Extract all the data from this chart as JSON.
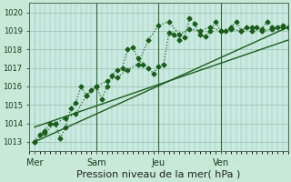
{
  "xlabel": "Pression niveau de la mer( hPa )",
  "bg_color": "#c8e8d8",
  "plot_bg_color": "#c8eae0",
  "grid_color": "#99bbaa",
  "line_color": "#1a5c1a",
  "vline_color": "#336633",
  "ylim": [
    1012.5,
    1020.5
  ],
  "xlim": [
    0,
    100
  ],
  "yticks": [
    1013,
    1014,
    1015,
    1016,
    1017,
    1018,
    1019,
    1020
  ],
  "ytick_labels": [
    "1013",
    "1014",
    "1015",
    "1016",
    "1017",
    "1018",
    "1019",
    "1020"
  ],
  "xtick_positions": [
    2,
    26,
    50,
    74
  ],
  "xtick_labels": [
    "Mer",
    "Sam",
    "Jeu",
    "Ven"
  ],
  "vline_positions": [
    26,
    50,
    74
  ],
  "series1_x": [
    2,
    4,
    6,
    8,
    10,
    12,
    14,
    16,
    18,
    20,
    22,
    24,
    26,
    28,
    30,
    32,
    34,
    36,
    38,
    40,
    42,
    44,
    46,
    48,
    50,
    52,
    54,
    56,
    58,
    60,
    62,
    64,
    66,
    68,
    70,
    72,
    74,
    76,
    78,
    80,
    82,
    84,
    86,
    88,
    90,
    92,
    94,
    96,
    98,
    100
  ],
  "series1_y": [
    1013.0,
    1013.4,
    1013.6,
    1014.0,
    1014.0,
    1013.2,
    1013.8,
    1014.8,
    1015.1,
    1016.0,
    1015.5,
    1015.8,
    1016.0,
    1015.3,
    1016.0,
    1016.6,
    1016.9,
    1017.0,
    1018.0,
    1018.1,
    1017.5,
    1017.2,
    1017.0,
    1016.7,
    1017.1,
    1017.2,
    1018.9,
    1018.8,
    1018.5,
    1018.65,
    1019.7,
    1019.4,
    1018.8,
    1018.7,
    1019.0,
    1019.5,
    1019.0,
    1019.0,
    1019.2,
    1019.5,
    1019.0,
    1019.2,
    1019.0,
    1019.2,
    1019.1,
    1019.5,
    1019.2,
    1019.2,
    1019.3,
    1019.2
  ],
  "series2_x": [
    2,
    6,
    10,
    14,
    18,
    22,
    26,
    30,
    34,
    38,
    42,
    46,
    50,
    54,
    58,
    62,
    66,
    70,
    74,
    78,
    82,
    86,
    90,
    94,
    98
  ],
  "series2_y": [
    1013.0,
    1013.5,
    1014.0,
    1014.3,
    1014.5,
    1015.5,
    1016.0,
    1016.3,
    1016.5,
    1016.9,
    1017.2,
    1018.5,
    1019.3,
    1019.5,
    1018.8,
    1019.1,
    1019.0,
    1019.2,
    1019.0,
    1019.1,
    1019.0,
    1019.2,
    1019.0,
    1019.1,
    1019.2
  ],
  "trend1_x": [
    2,
    100
  ],
  "trend1_y": [
    1013.0,
    1019.2
  ],
  "trend2_x": [
    2,
    100
  ],
  "trend2_y": [
    1013.8,
    1018.5
  ],
  "marker": "D",
  "markersize": 2.5,
  "linewidth": 0.9,
  "trend_linewidth": 1.0,
  "xlabel_fontsize": 8,
  "tick_fontsize": 6,
  "xtick_fontsize": 7
}
